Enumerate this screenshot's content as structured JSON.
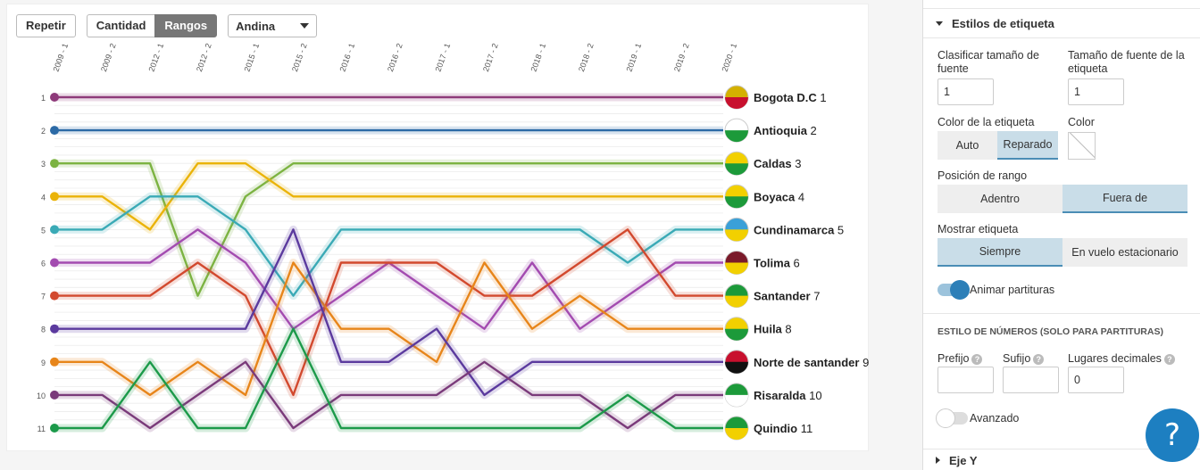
{
  "controls": {
    "replay_label": "Repetir",
    "quantity_label": "Cantidad",
    "ranks_label": "Rangos",
    "region_selected": "Andina"
  },
  "chart_data": {
    "type": "line",
    "x": [
      "2009 - 1",
      "2009 - 2",
      "2012 - 1",
      "2012 - 2",
      "2015 - 1",
      "2015 - 2",
      "2016 - 1",
      "2016 - 2",
      "2017 - 1",
      "2017 - 2",
      "2018 - 1",
      "2018 - 2",
      "2019 - 1",
      "2019 - 2",
      "2020 - 1"
    ],
    "ylim": [
      1,
      11
    ],
    "y_inverted": true,
    "yticks": [
      "1",
      "2",
      "3",
      "4",
      "5",
      "6",
      "7",
      "8",
      "9",
      "10",
      "11"
    ],
    "series": [
      {
        "name": "Bogota D.C",
        "color": "#8e3a7a",
        "rank_label": "1",
        "flag": [
          "#d4b000",
          "#c8102e"
        ],
        "values": [
          1,
          1,
          1,
          1,
          1,
          1,
          1,
          1,
          1,
          1,
          1,
          1,
          1,
          1,
          1
        ]
      },
      {
        "name": "Antioquia",
        "color": "#2c6aa6",
        "rank_label": "2",
        "flag": [
          "#ffffff",
          "#1c9a3a"
        ],
        "values": [
          2,
          2,
          2,
          2,
          2,
          2,
          2,
          2,
          2,
          2,
          2,
          2,
          2,
          2,
          2
        ]
      },
      {
        "name": "Caldas",
        "color": "#7cb342",
        "rank_label": "3",
        "flag": [
          "#f2d000",
          "#1c9a3a"
        ],
        "values": [
          3,
          3,
          3,
          7,
          4,
          3,
          3,
          3,
          3,
          3,
          3,
          3,
          3,
          3,
          3
        ]
      },
      {
        "name": "Boyaca",
        "color": "#eab308",
        "rank_label": "4",
        "flag": [
          "#f2d000",
          "#1c9a3a"
        ],
        "values": [
          4,
          4,
          5,
          3,
          3,
          4,
          4,
          4,
          4,
          4,
          4,
          4,
          4,
          4,
          4
        ]
      },
      {
        "name": "Cundinamarca",
        "color": "#3aaab6",
        "rank_label": "5",
        "flag": [
          "#3aa0d8",
          "#f2d000"
        ],
        "values": [
          5,
          5,
          4,
          4,
          5,
          7,
          5,
          5,
          5,
          5,
          5,
          5,
          6,
          5,
          5
        ]
      },
      {
        "name": "Tolima",
        "color": "#a34bb0",
        "rank_label": "6",
        "flag": [
          "#7a1a2a",
          "#f2d000"
        ],
        "values": [
          6,
          6,
          6,
          5,
          6,
          8,
          7,
          6,
          7,
          8,
          6,
          8,
          7,
          6,
          6
        ]
      },
      {
        "name": "Santander",
        "color": "#d2492e",
        "rank_label": "7",
        "flag": [
          "#1c9a3a",
          "#f2d000"
        ],
        "values": [
          7,
          7,
          7,
          6,
          7,
          10,
          6,
          6,
          6,
          7,
          7,
          6,
          5,
          7,
          7
        ]
      },
      {
        "name": "Huila",
        "color": "#e7851a",
        "rank_label": "8",
        "flag": [
          "#f2d000",
          "#1c9a3a"
        ],
        "values": [
          9,
          9,
          10,
          9,
          10,
          6,
          8,
          8,
          9,
          6,
          8,
          7,
          8,
          8,
          8
        ]
      },
      {
        "name": "Norte de santander",
        "color": "#5b3a9e",
        "rank_label": "9",
        "flag": [
          "#c8102e",
          "#111111"
        ],
        "values": [
          8,
          8,
          8,
          8,
          8,
          5,
          9,
          9,
          8,
          10,
          9,
          9,
          9,
          9,
          9
        ]
      },
      {
        "name": "Risaralda",
        "color": "#7a3a7a",
        "rank_label": "10",
        "flag": [
          "#1c9a3a",
          "#ffffff"
        ],
        "values": [
          10,
          10,
          11,
          10,
          9,
          11,
          10,
          10,
          10,
          9,
          10,
          10,
          11,
          10,
          10
        ]
      },
      {
        "name": "Quindio",
        "color": "#1c9a4a",
        "rank_label": "11",
        "flag": [
          "#1c9a3a",
          "#f2d000"
        ],
        "values": [
          11,
          11,
          9,
          11,
          11,
          8,
          11,
          11,
          11,
          11,
          11,
          11,
          10,
          11,
          11
        ]
      }
    ]
  },
  "settings": {
    "section_label": "Estilos de etiqueta",
    "classify_label": "Clasificar tamaño de fuente",
    "classify_value": "1",
    "font_size_label": "Tamaño de fuente de la etiqueta",
    "font_size_value": "1",
    "label_color_label": "Color de la etiqueta",
    "color_auto": "Auto",
    "color_fixed": "Reparado",
    "color_label": "Color",
    "rank_position_label": "Posición de rango",
    "pos_inside": "Adentro",
    "pos_outside": "Fuera de",
    "show_label_label": "Mostrar etiqueta",
    "show_always": "Siempre",
    "show_hover": "En vuelo estacionario",
    "animate_label": "Animar partituras",
    "numbers_section": "ESTILO DE NÚMEROS (SOLO PARA PARTITURAS)",
    "prefix_label": "Prefijo",
    "prefix_value": "",
    "suffix_label": "Sufijo",
    "suffix_value": "",
    "decimals_label": "Lugares decimales",
    "decimals_value": "0",
    "advanced_label": "Avanzado",
    "y_axis_label": "Eje Y",
    "help_label": "?"
  }
}
